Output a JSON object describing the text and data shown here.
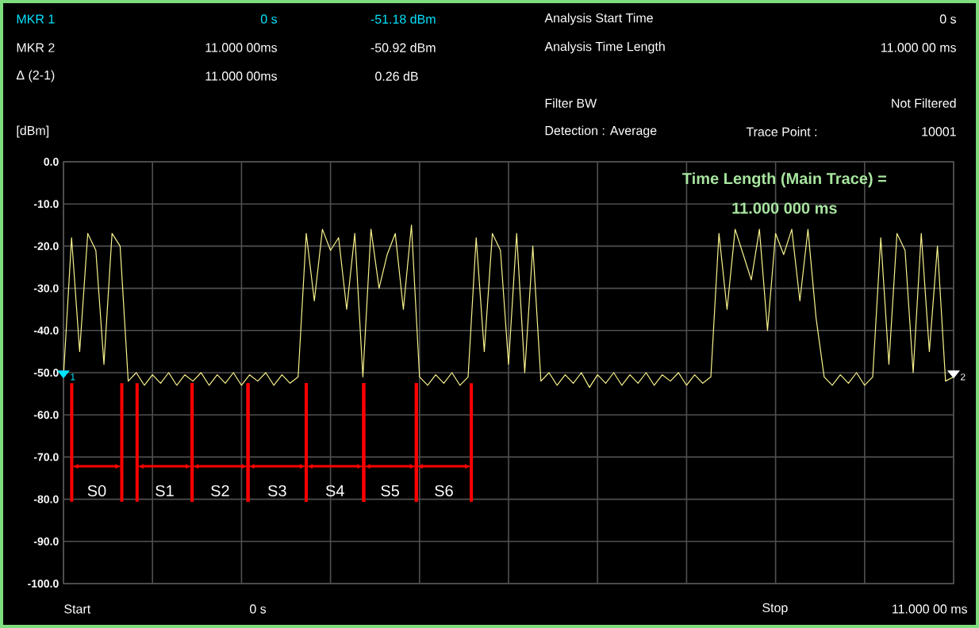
{
  "chart_data": {
    "type": "line",
    "title": "Time Length (Main Trace) =",
    "subtitle": "11.000 000 ms",
    "ylabel": "[dBm]",
    "color": "#f7f28c",
    "categories": [
      null,
      null,
      null,
      null,
      null,
      null,
      null,
      null,
      null,
      null,
      null,
      null,
      null,
      null,
      null,
      null,
      null,
      null,
      null,
      null,
      null,
      null,
      null,
      null,
      null,
      null,
      null,
      null,
      null,
      null,
      null,
      null,
      null,
      null,
      null,
      null,
      null,
      null,
      null,
      null,
      null,
      null,
      null,
      null,
      null,
      null,
      null,
      null,
      null,
      null,
      null,
      null,
      null,
      null,
      null,
      null,
      null,
      null,
      null,
      null,
      null,
      null,
      null,
      null,
      null,
      null,
      null,
      null,
      null,
      null,
      null,
      null,
      null,
      null,
      null,
      null,
      null,
      null,
      null,
      null,
      null,
      null,
      null,
      null,
      null,
      null,
      null,
      null,
      null,
      null,
      null,
      null,
      null,
      null,
      null,
      null,
      null,
      null,
      null,
      null,
      null,
      null,
      null,
      null,
      null,
      null,
      null,
      null,
      null,
      null,
      null
    ],
    "values": [
      -51,
      -18,
      -45,
      -17,
      -21,
      -48,
      -17,
      -20,
      -52,
      -50,
      -53,
      -50.5,
      -52.5,
      -50,
      -53,
      -50.5,
      -52,
      -50,
      -53,
      -50.5,
      -52.5,
      -50,
      -53,
      -50.5,
      -52,
      -50,
      -53,
      -50.5,
      -52.5,
      -51,
      -17,
      -33,
      -16,
      -21,
      -18,
      -35,
      -17,
      -51,
      -16,
      -30,
      -22,
      -17,
      -35,
      -15,
      -51,
      -53,
      -50.5,
      -52.5,
      -50,
      -53,
      -51,
      -18,
      -45,
      -17,
      -21,
      -48,
      -17,
      -50,
      -20,
      -52,
      -50,
      -53,
      -50.5,
      -52.5,
      -50,
      -53.5,
      -50.5,
      -52.5,
      -50,
      -53,
      -50.5,
      -52.5,
      -50,
      -53,
      -50.5,
      -52,
      -50,
      -53,
      -50.5,
      -52.5,
      -51,
      -17,
      -35,
      -16,
      -22,
      -28,
      -16,
      -40,
      -17,
      -22,
      -16,
      -33,
      -16,
      -37,
      -51,
      -53,
      -50.5,
      -52.5,
      -50,
      -53,
      -51,
      -18,
      -48,
      -17,
      -21,
      -50,
      -17,
      -45,
      -20,
      -52,
      -51
    ],
    "ylim": [
      -100,
      0
    ],
    "yticks": [
      {
        "value": 0,
        "label": "0.0"
      },
      {
        "value": -10,
        "label": "-10.0"
      },
      {
        "value": -20,
        "label": "-20.0"
      },
      {
        "value": -30,
        "label": "-30.0"
      },
      {
        "value": -40,
        "label": "-40.0"
      },
      {
        "value": -50,
        "label": "-50.0"
      },
      {
        "value": -60,
        "label": "-60.0"
      },
      {
        "value": -70,
        "label": "-70.0"
      },
      {
        "value": -80,
        "label": "-80.0"
      },
      {
        "value": -90,
        "label": "-90.0"
      },
      {
        "value": -100,
        "label": "-100.0"
      }
    ],
    "tick_labels": "y",
    "grid": true,
    "annotations": [
      "MKR 1",
      "0 s",
      "-51.18 dBm",
      "MKR 2",
      "11.000 00ms",
      "-50.92 dBm",
      "Δ (2-1)",
      "11.000 00ms",
      "0.26 dB",
      "Analysis Start Time",
      "0 s",
      "Analysis Time Length",
      "11.000 00 ms",
      "Filter BW",
      "Not Filtered",
      "Detection :  Average",
      "Trace Point :",
      "10001",
      "Start",
      "0 s",
      "Stop",
      "11.000 00 ms",
      "S0",
      "S1",
      "S2",
      "S3",
      "S4",
      "S5",
      "S6",
      "1",
      "2"
    ]
  }
}
